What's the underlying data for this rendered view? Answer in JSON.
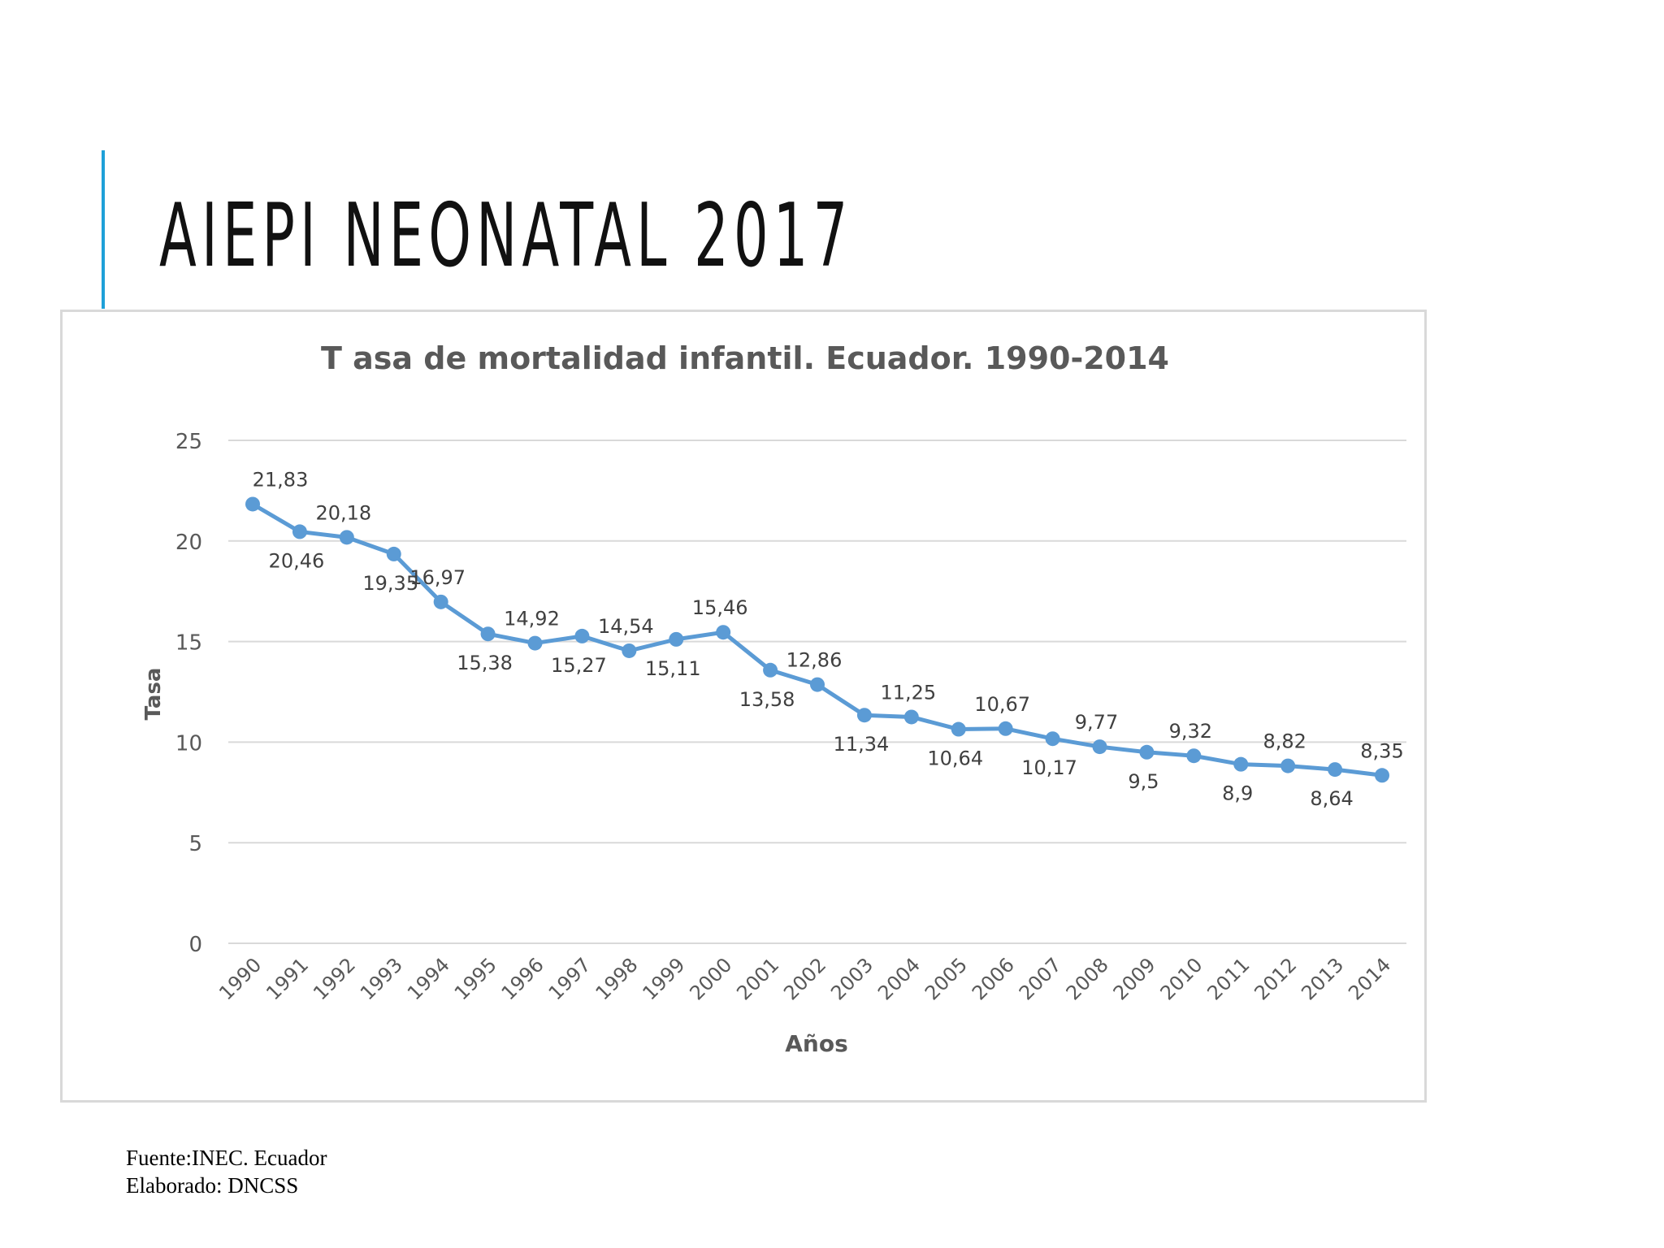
{
  "slide": {
    "heading": "AIEPI NEONATAL 2017",
    "accent_color": "#1ea0d8",
    "footer": [
      "Fuente:INEC. Ecuador",
      "Elaborado: DNCSS"
    ]
  },
  "chart_data": {
    "type": "line",
    "title": "T asa de mortalidad infantil. Ecuador. 1990-2014",
    "xlabel": "Años",
    "ylabel": "Tasa",
    "ylim": [
      0,
      25
    ],
    "yticks": [
      "0",
      "5",
      "10",
      "15",
      "20",
      "25"
    ],
    "grid": true,
    "legend": "none",
    "series_color": "#5b9bd5",
    "categories": [
      "1990",
      "1991",
      "1992",
      "1993",
      "1994",
      "1995",
      "1996",
      "1997",
      "1998",
      "1999",
      "2000",
      "2001",
      "2002",
      "2003",
      "2004",
      "2005",
      "2006",
      "2007",
      "2008",
      "2009",
      "2010",
      "2011",
      "2012",
      "2013",
      "2014"
    ],
    "values": [
      21.83,
      20.46,
      20.18,
      19.35,
      16.97,
      15.38,
      14.92,
      15.27,
      14.54,
      15.11,
      15.46,
      13.58,
      12.86,
      11.34,
      11.25,
      10.64,
      10.67,
      10.17,
      9.77,
      9.5,
      9.32,
      8.9,
      8.82,
      8.64,
      8.35
    ],
    "data_labels": [
      "21,83",
      "20,46",
      "20,18",
      "19,35",
      "16,97",
      "15,38",
      "14,92",
      "15,27",
      "14,54",
      "15,11",
      "15,46",
      "13,58",
      "12,86",
      "11,34",
      "11,25",
      "10,64",
      "10,67",
      "10,17",
      "9,77",
      "9,5",
      "9,32",
      "8,9",
      "8,82",
      "8,64",
      "8,35"
    ]
  }
}
